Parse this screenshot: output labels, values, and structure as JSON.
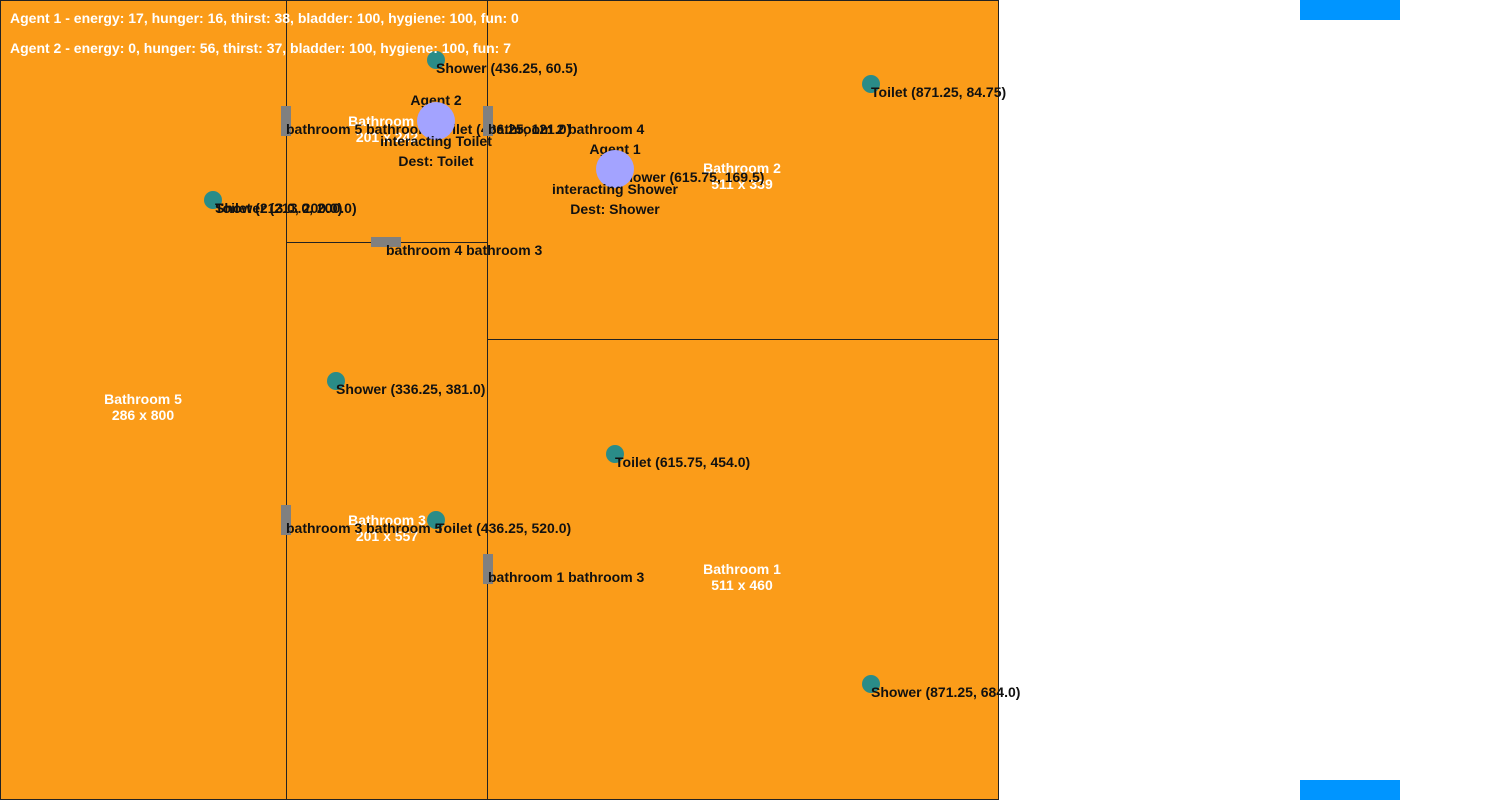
{
  "status": {
    "agent1": "Agent 1 - energy: 17, hunger: 16, thirst: 38, bladder: 100, hygiene: 100, fun: 0",
    "agent2": "Agent 2 - energy: 0, hunger: 56, thirst: 37, bladder: 100, hygiene: 100, fun: 7"
  },
  "rooms": {
    "b5": {
      "name": "Bathroom 5",
      "size": "286 x 800"
    },
    "b4": {
      "name": "Bathroom 4",
      "size": "201 x 242"
    },
    "b3": {
      "name": "Bathroom 3",
      "size": "201 x 557"
    },
    "b2": {
      "name": "Bathroom 2",
      "size": "511 x 339"
    },
    "b1": {
      "name": "Bathroom 1",
      "size": "511 x 460"
    }
  },
  "objects": {
    "b5_toilet": "Toilet (213.0, 200.0)",
    "b5_shower": "Shower (213.0, 200.0)",
    "b4_shower": "Shower (436.25, 60.5)",
    "b4_toilet": "Toilet (436.25, 121.0)",
    "b2_toilet": "Toilet (871.25, 84.75)",
    "b2_shower": "Shower (615.75, 169.5)",
    "b3_shower": "Shower (336.25, 381.0)",
    "b3_toilet": "Toilet (436.25, 520.0)",
    "b1_toilet": "Toilet (615.75, 454.0)",
    "b1_shower": "Shower (871.25, 684.0)"
  },
  "doors": {
    "d54": "bathroom 5 bathroom 4",
    "d24": "bathroom 2 bathroom 4",
    "d43": "bathroom 4 bathroom 3",
    "d35": "bathroom 3 bathroom 5",
    "d13": "bathroom 1 bathroom 3"
  },
  "agents": {
    "a2": {
      "name": "Agent 2",
      "action": "interacting Toilet",
      "dest": "Dest: Toilet"
    },
    "a1": {
      "name": "Agent 1",
      "action": "interacting Shower",
      "dest": "Dest: Shower"
    }
  },
  "colors": {
    "floor": "#fb9c19",
    "object": "#2a8c88",
    "agent": "#a3a3ff",
    "window": "#0095ff",
    "door": "#808080"
  }
}
